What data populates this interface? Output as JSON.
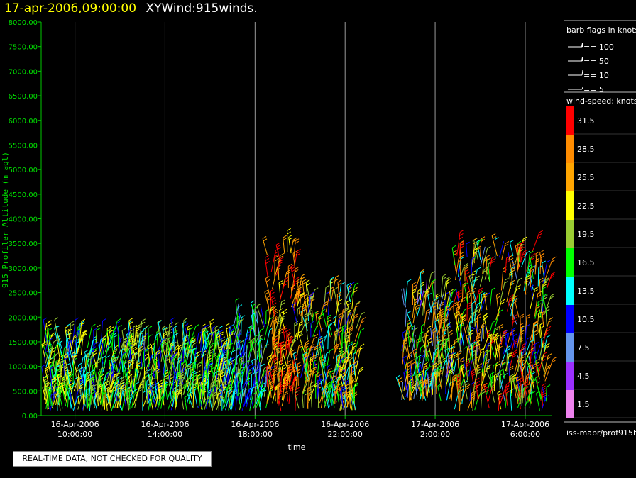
{
  "header": {
    "date": "17-apr-2006,09:00:00",
    "title": "XYWind:915winds."
  },
  "qc_notice": "REAL-TIME DATA, NOT CHECKED FOR QUALITY",
  "legend": {
    "barb_title": "barb flags in knots",
    "barb_items": [
      "== 100",
      "== 50",
      "== 10",
      "== 5"
    ],
    "speed_title": "wind-speed: knots",
    "footer": "iss-mapr/prof915h"
  },
  "colors": {
    "axis": "#00cc00",
    "gridline": "#9a9a9a",
    "speed_bins": [
      "#ee82ee",
      "#9b30ff",
      "#6495ed",
      "#0000ff",
      "#00ffff",
      "#00ff00",
      "#9acd32",
      "#ffff00",
      "#ffa500",
      "#ff8c00",
      "#ff0000"
    ]
  },
  "chart_data": {
    "type": "scatter",
    "subtype": "wind-barbs",
    "ylabel": "915 Profiler Altitude (m agl)",
    "xlabel": "time",
    "ylim": [
      0,
      8000
    ],
    "yticks": [
      "0.00",
      "500.00",
      "1000.00",
      "1500.00",
      "2000.00",
      "2500.00",
      "3000.00",
      "3500.00",
      "4000.00",
      "4500.00",
      "5000.00",
      "5500.00",
      "6000.00",
      "6500.00",
      "7000.00",
      "7500.00",
      "8000.00"
    ],
    "xlim_hours": [
      8.5,
      31.2
    ],
    "xticks": [
      {
        "hour": 10,
        "date": "16-Apr-2006",
        "time": "10:00:00"
      },
      {
        "hour": 14,
        "date": "16-Apr-2006",
        "time": "14:00:00"
      },
      {
        "hour": 18,
        "date": "16-Apr-2006",
        "time": "18:00:00"
      },
      {
        "hour": 22,
        "date": "16-Apr-2006",
        "time": "22:00:00"
      },
      {
        "hour": 26,
        "date": "17-Apr-2006",
        "time": "2:00:00"
      },
      {
        "hour": 30,
        "date": "17-Apr-2006",
        "time": "6:00:00"
      }
    ],
    "grid": true,
    "colorbar": {
      "units": "knots",
      "levels": [
        1.5,
        4.5,
        7.5,
        10.5,
        13.5,
        16.5,
        19.5,
        22.5,
        25.5,
        28.5,
        31.5
      ]
    },
    "wind_profile_summary": [
      {
        "hour_range": [
          8.6,
          17.0
        ],
        "alt_range": [
          100,
          1500
        ],
        "speed_range": [
          10,
          24
        ]
      },
      {
        "hour_range": [
          17.0,
          18.5
        ],
        "alt_range": [
          100,
          1900
        ],
        "speed_range": [
          7,
          20
        ]
      },
      {
        "hour_range": [
          18.5,
          19.8
        ],
        "alt_range": [
          100,
          3400
        ],
        "speed_range": [
          20,
          33
        ]
      },
      {
        "hour_range": [
          19.8,
          22.5
        ],
        "alt_range": [
          100,
          2400
        ],
        "speed_range": [
          10,
          30
        ]
      },
      {
        "hour_range": [
          24.5,
          26.8
        ],
        "alt_range": [
          300,
          2500
        ],
        "speed_range": [
          5,
          30
        ]
      },
      {
        "hour_range": [
          26.8,
          31.0
        ],
        "alt_range": [
          100,
          3300
        ],
        "speed_range": [
          8,
          33
        ]
      }
    ]
  }
}
